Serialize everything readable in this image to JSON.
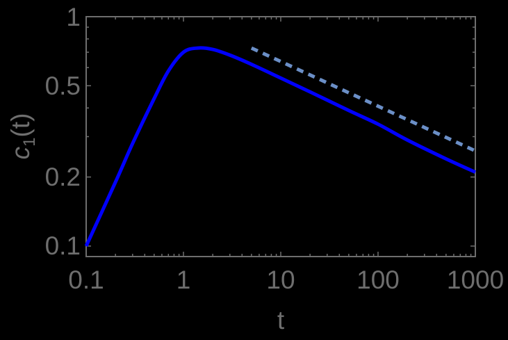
{
  "chart_data": {
    "type": "line",
    "title": "",
    "xlabel": "t",
    "ylabel": "c1(t)",
    "xscale": "log",
    "yscale": "log",
    "xlim": [
      0.1,
      1000
    ],
    "ylim": [
      0.09,
      1
    ],
    "grid": false,
    "legend": null,
    "x_ticks": [
      "0.1",
      "1",
      "10",
      "100",
      "1000"
    ],
    "y_ticks": [
      "0.1",
      "0.2",
      "0.5",
      "1"
    ],
    "series": [
      {
        "name": "c1(t)",
        "style": "solid",
        "color": "#0000ff",
        "x": [
          0.1,
          0.2,
          0.3,
          0.5,
          0.7,
          1.0,
          1.4,
          2.0,
          3.0,
          5.0,
          10,
          20,
          50,
          100,
          200,
          500,
          1000
        ],
        "y": [
          0.1,
          0.19,
          0.28,
          0.44,
          0.58,
          0.7,
          0.73,
          0.72,
          0.68,
          0.62,
          0.54,
          0.47,
          0.39,
          0.34,
          0.29,
          0.24,
          0.21
        ]
      },
      {
        "name": "asymptote",
        "style": "dashed",
        "color": "#6b8fc7",
        "x": [
          5,
          1000
        ],
        "y": [
          0.73,
          0.26
        ]
      }
    ]
  },
  "labels": {
    "xlabel": "t",
    "ylabel_main": "c",
    "ylabel_sub": "1",
    "ylabel_arg": "(t)",
    "xticks": [
      "0.1",
      "1",
      "10",
      "100",
      "1000"
    ],
    "yticks": [
      "1",
      "0.5",
      "0.2",
      "0.1"
    ]
  }
}
